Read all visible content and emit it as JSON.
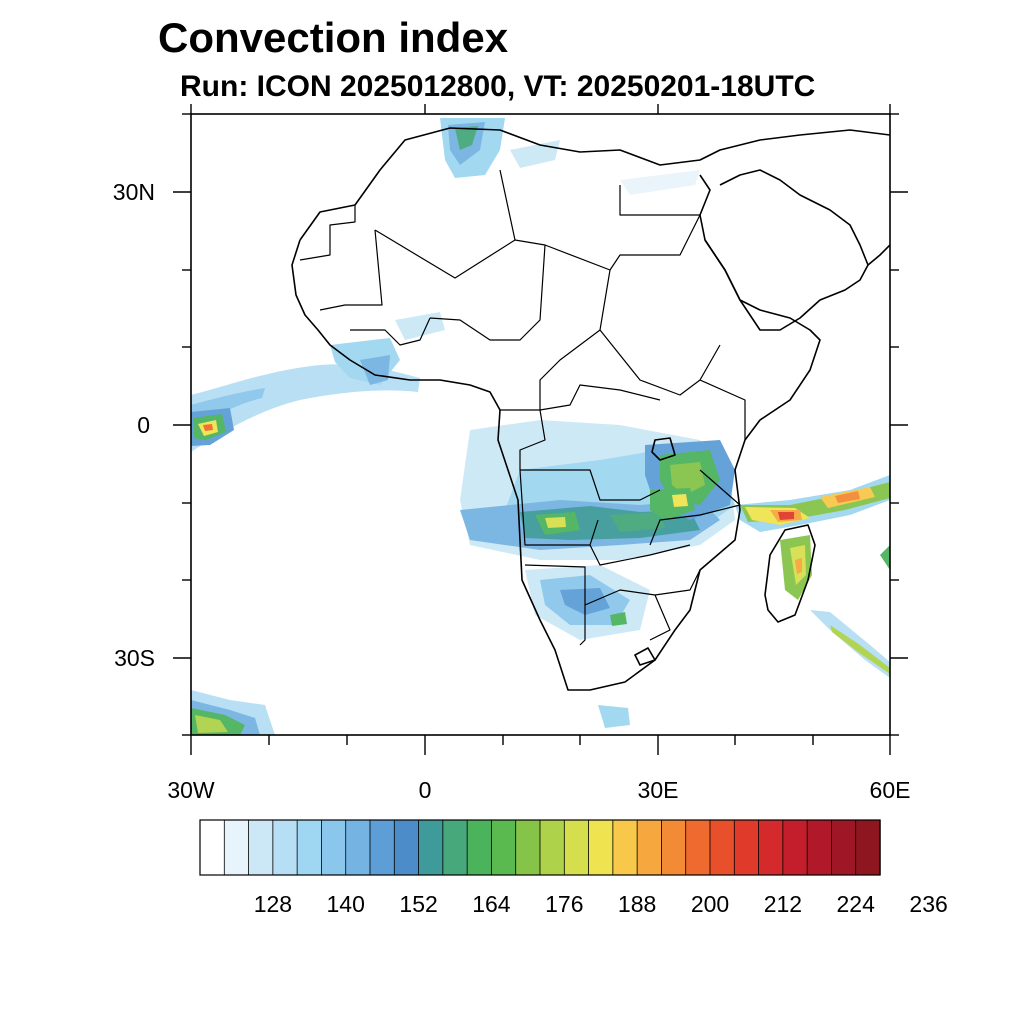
{
  "title": "Convection index",
  "subtitle": "Run: ICON 2025012800,  VT: 20250201-18UTC",
  "map": {
    "lat_ticks": [
      "30N",
      "0",
      "30S"
    ],
    "lon_ticks": [
      "30W",
      "0",
      "30E",
      "60E"
    ],
    "extent": {
      "lon_min": -30,
      "lon_max": 60,
      "lat_min": -40,
      "lat_max": 40
    }
  },
  "colorbar": {
    "levels": [
      128,
      140,
      152,
      164,
      176,
      188,
      200,
      212,
      224,
      236
    ],
    "colors": [
      "#ffffff",
      "#e8f4fb",
      "#cce8f6",
      "#b6def4",
      "#9fd6f1",
      "#8bc7ec",
      "#75b3e2",
      "#5d9ed6",
      "#4b8cc9",
      "#3f9a9a",
      "#46a87b",
      "#4cb35d",
      "#5ab94f",
      "#86c449",
      "#aed24a",
      "#d5df4d",
      "#f0e350",
      "#f7c84a",
      "#f6a73e",
      "#f38a35",
      "#ee6a2e",
      "#e8502b",
      "#e03a2a",
      "#d42a2c",
      "#c41e2c",
      "#b1192b",
      "#9f1727",
      "#8e1620"
    ]
  }
}
